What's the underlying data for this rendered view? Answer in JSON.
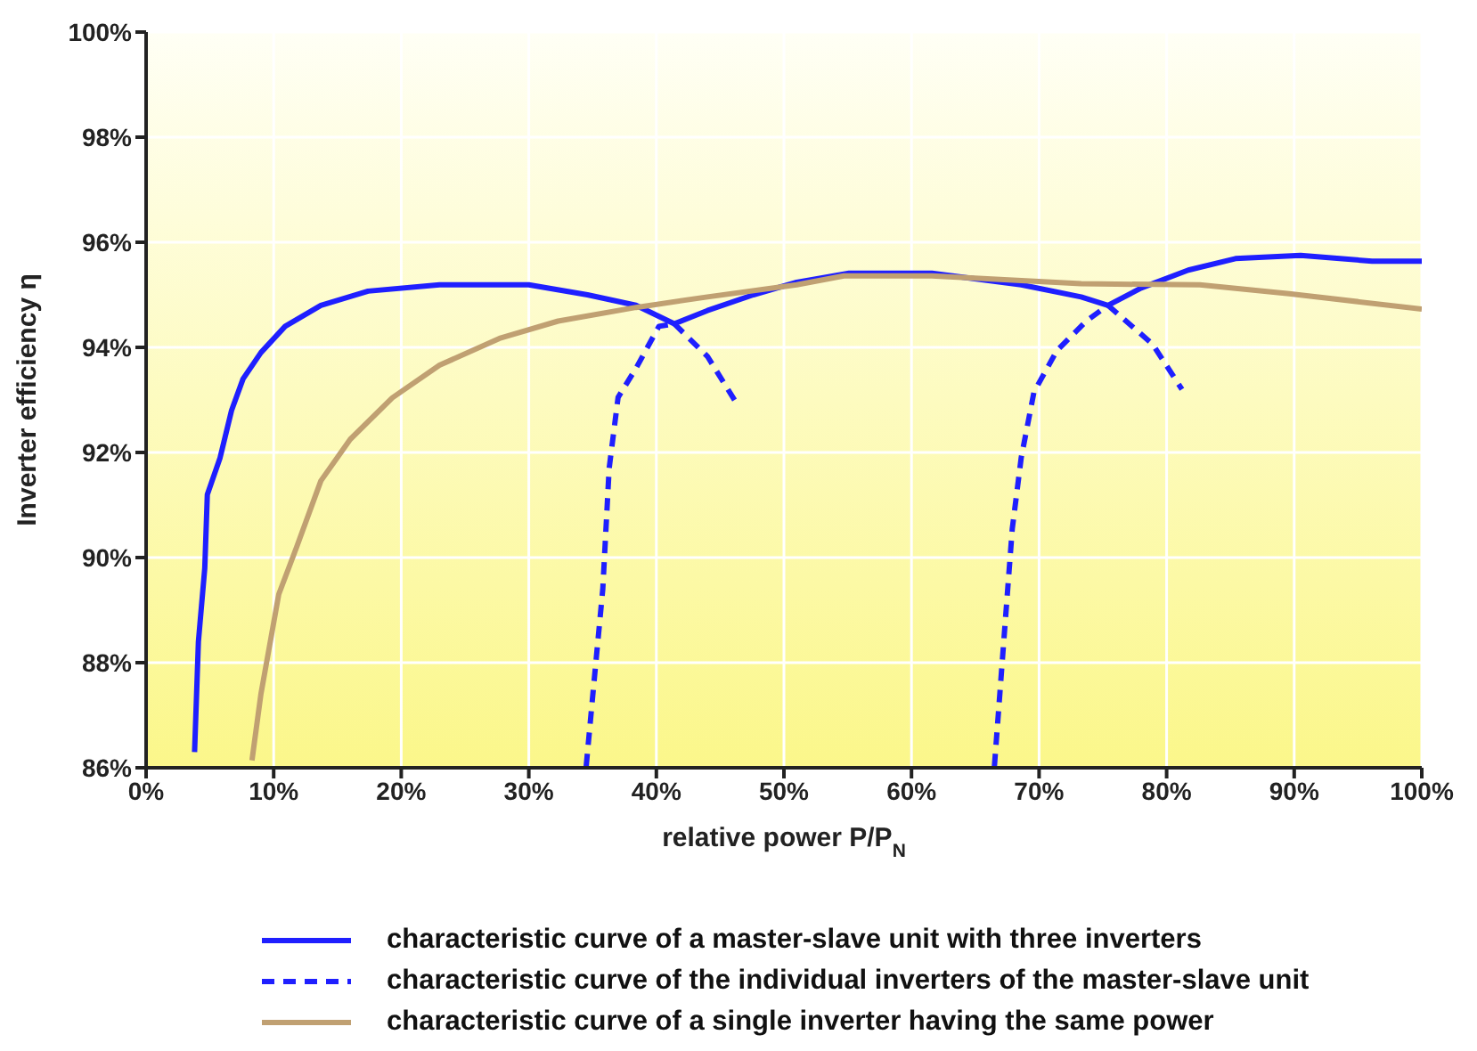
{
  "chart_data": {
    "type": "line",
    "xlabel": "relative power P/P$_{N}$",
    "ylabel": "Inverter efficiency η",
    "xlim": [
      0,
      100
    ],
    "ylim": [
      86,
      100
    ],
    "xticks": [
      {
        "value": 0,
        "label": "0%"
      },
      {
        "value": 10,
        "label": "10%"
      },
      {
        "value": 20,
        "label": "20%"
      },
      {
        "value": 30,
        "label": "30%"
      },
      {
        "value": 40,
        "label": "40%"
      },
      {
        "value": 50,
        "label": "50%"
      },
      {
        "value": 60,
        "label": "60%"
      },
      {
        "value": 70,
        "label": "70%"
      },
      {
        "value": 80,
        "label": "80%"
      },
      {
        "value": 90,
        "label": "90%"
      },
      {
        "value": 100,
        "label": "100%"
      }
    ],
    "yticks": [
      {
        "value": 86,
        "label": "86%"
      },
      {
        "value": 88,
        "label": "88%"
      },
      {
        "value": 90,
        "label": "90%"
      },
      {
        "value": 92,
        "label": "92%"
      },
      {
        "value": 94,
        "label": "94%"
      },
      {
        "value": 96,
        "label": "96%"
      },
      {
        "value": 98,
        "label": "98%"
      },
      {
        "value": 100,
        "label": "100%"
      }
    ],
    "grid": true,
    "legend": "bottom",
    "marker": "none",
    "series": [
      {
        "name": "characteristic curve of a master-slave unit with three inverters",
        "color": "#1f1fff",
        "line_style": "solid",
        "x": [
          3.8,
          4.1,
          4.6,
          4.8,
          5.8,
          6.7,
          7.6,
          9.0,
          10.9,
          13.7,
          17.4,
          23.0,
          30.0,
          34.6,
          38.4,
          41.4,
          44.0,
          47.6,
          51.0,
          55.1,
          61.6,
          68.6,
          73.3,
          75.4,
          78.0,
          81.7,
          85.4,
          90.5,
          96.1,
          100
        ],
        "values": [
          86.3,
          88.4,
          89.8,
          91.2,
          91.9,
          92.8,
          93.4,
          93.9,
          94.4,
          94.8,
          95.07,
          95.19,
          95.19,
          95.0,
          94.8,
          94.45,
          94.7,
          95.0,
          95.24,
          95.41,
          95.41,
          95.19,
          94.96,
          94.8,
          95.13,
          95.47,
          95.69,
          95.75,
          95.64,
          95.64
        ]
      },
      {
        "name": "characteristic curve of the individual inverters of the master-slave unit",
        "color": "#1f1fff",
        "line_style": "dashed",
        "x": [
          41.4,
          44.0,
          46.3,
          null,
          34.5,
          35.1,
          35.8,
          36.3,
          37.0,
          38.4,
          40.2,
          41.4,
          null,
          75.4,
          78.9,
          81.2,
          null,
          66.5,
          67.2,
          67.9,
          68.6,
          69.6,
          71.4,
          73.7,
          75.4
        ],
        "values": [
          94.45,
          93.83,
          92.93,
          null,
          86.03,
          87.6,
          89.4,
          91.7,
          93.05,
          93.6,
          94.4,
          94.45,
          null,
          94.8,
          94.06,
          93.2,
          null,
          86.03,
          88.3,
          90.55,
          91.9,
          93.15,
          93.94,
          94.5,
          94.8
        ]
      },
      {
        "name": "characteristic curve of a single inverter having the same power",
        "color": "#c0a072",
        "line_style": "solid",
        "x": [
          8.3,
          9.0,
          10.4,
          11.8,
          13.7,
          16.0,
          19.3,
          23.0,
          27.7,
          32.3,
          38.4,
          44.0,
          51.0,
          54.7,
          61.6,
          73.3,
          82.6,
          89.6,
          100
        ],
        "values": [
          86.14,
          87.4,
          89.3,
          90.2,
          91.46,
          92.25,
          93.04,
          93.66,
          94.17,
          94.5,
          94.76,
          94.96,
          95.19,
          95.36,
          95.36,
          95.21,
          95.19,
          95.02,
          94.73
        ]
      }
    ]
  }
}
